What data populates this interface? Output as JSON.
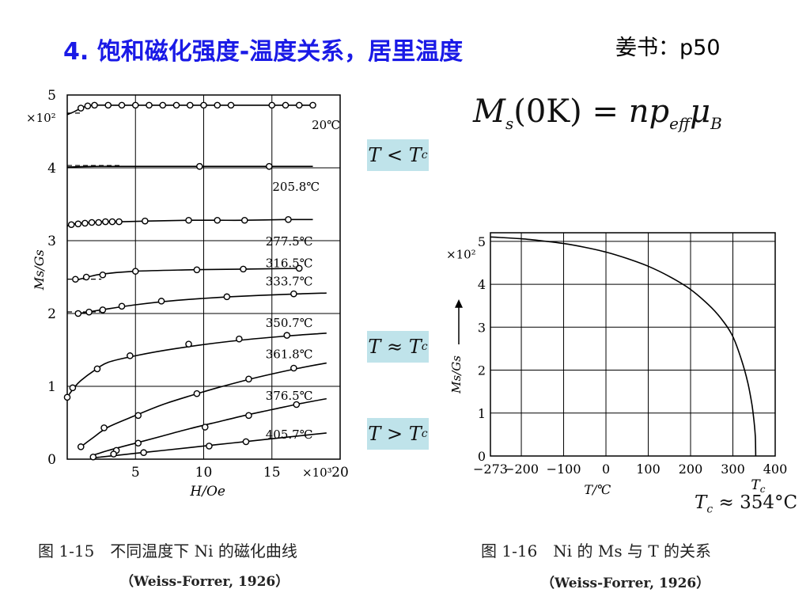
{
  "slide": {
    "title": "4. 饱和磁化强度-温度关系，居里温度",
    "reference": "姜书：p50",
    "formula": {
      "lhs_symbol": "M",
      "lhs_sub": "s",
      "lhs_arg": "(0K)",
      "rhs_n": "np",
      "rhs_sub": "eff",
      "rhs_mu": "μ",
      "rhs_mu_sub": "B"
    },
    "badges": [
      {
        "symbol": "T < T",
        "sub": "c"
      },
      {
        "symbol": "T ≈ T",
        "sub": "c"
      },
      {
        "symbol": "T > T",
        "sub": "c"
      }
    ],
    "tc_note": {
      "symbol": "T",
      "sub": "c",
      "value": "≈ 354°C"
    }
  },
  "chart_data": [
    {
      "type": "line",
      "title": "",
      "xlabel": "H/Oe",
      "ylabel": "Ms/Gs",
      "x_multiplier": "×10³",
      "y_multiplier": "×10²",
      "xlim": [
        0,
        20
      ],
      "ylim": [
        0,
        5
      ],
      "x_ticks": [
        5,
        10,
        15,
        20
      ],
      "y_ticks": [
        0,
        1,
        2,
        3,
        4,
        5
      ],
      "grid": true,
      "caption": "图 1-15　不同温度下 Ni 的磁化曲线",
      "source": "（Weiss-Forrer, 1926）",
      "series": [
        {
          "name": "20℃",
          "x": [
            0,
            0.5,
            1,
            1.5,
            2,
            3,
            4,
            5,
            6,
            7,
            8,
            9,
            10,
            11,
            12,
            14,
            15,
            16,
            17,
            18
          ],
          "values": [
            4.73,
            4.77,
            4.82,
            4.85,
            4.86,
            4.86,
            4.86,
            4.86,
            4.86,
            4.86,
            4.86,
            4.86,
            4.86,
            4.86,
            4.86,
            4.86,
            4.86,
            4.86,
            4.86,
            4.86
          ]
        },
        {
          "name": "205.8℃",
          "x": [
            0,
            2,
            4,
            8,
            12,
            16,
            18
          ],
          "values": [
            4.01,
            4.02,
            4.02,
            4.02,
            4.02,
            4.02,
            4.02
          ]
        },
        {
          "name": "277.5℃",
          "x": [
            0,
            0.2,
            0.5,
            1,
            1.5,
            2,
            2.5,
            3,
            3.5,
            4,
            6,
            9,
            11,
            13,
            16,
            18
          ],
          "values": [
            3.2,
            3.22,
            3.23,
            3.24,
            3.25,
            3.25,
            3.26,
            3.26,
            3.26,
            3.26,
            3.27,
            3.28,
            3.28,
            3.28,
            3.29,
            3.29
          ]
        },
        {
          "name": "316.5℃",
          "x": [
            0.5,
            1.5,
            2.5,
            5,
            9,
            13,
            17
          ],
          "values": [
            2.45,
            2.5,
            2.54,
            2.58,
            2.6,
            2.61,
            2.62
          ]
        },
        {
          "name": "333.7℃",
          "x": [
            0.8,
            1.5,
            2.5,
            5,
            8,
            12,
            17,
            19
          ],
          "values": [
            2.0,
            2.02,
            2.05,
            2.12,
            2.18,
            2.23,
            2.27,
            2.28
          ]
        },
        {
          "name": "350.7℃",
          "x": [
            0,
            0.5,
            1,
            2,
            3,
            5,
            8,
            12,
            16,
            19
          ],
          "values": [
            0.85,
            0.98,
            1.08,
            1.22,
            1.33,
            1.42,
            1.52,
            1.62,
            1.69,
            1.73
          ]
        },
        {
          "name": "361.8℃",
          "x": [
            1,
            2,
            3,
            5,
            7,
            9,
            11,
            13,
            15,
            17,
            19
          ],
          "values": [
            0.17,
            0.31,
            0.44,
            0.6,
            0.75,
            0.87,
            0.98,
            1.08,
            1.17,
            1.25,
            1.32
          ]
        },
        {
          "name": "376.5℃",
          "x": [
            2,
            3,
            5,
            7,
            9,
            11,
            13,
            15,
            17,
            19
          ],
          "values": [
            0.06,
            0.12,
            0.22,
            0.32,
            0.42,
            0.51,
            0.6,
            0.68,
            0.76,
            0.83
          ]
        },
        {
          "name": "405.7℃",
          "x": [
            2,
            3,
            5,
            7,
            9,
            11,
            13,
            15,
            17,
            19
          ],
          "values": [
            0.02,
            0.04,
            0.08,
            0.12,
            0.16,
            0.2,
            0.24,
            0.28,
            0.32,
            0.36
          ]
        }
      ],
      "markers": {
        "20℃": [
          [
            1,
            4.82
          ],
          [
            1.5,
            4.85
          ],
          [
            2,
            4.86
          ],
          [
            3,
            4.86
          ],
          [
            4,
            4.86
          ],
          [
            5,
            4.86
          ],
          [
            6,
            4.86
          ],
          [
            7,
            4.86
          ],
          [
            8,
            4.86
          ],
          [
            9,
            4.86
          ],
          [
            10,
            4.86
          ],
          [
            11,
            4.86
          ],
          [
            12,
            4.86
          ],
          [
            15,
            4.86
          ],
          [
            16,
            4.86
          ],
          [
            17,
            4.86
          ],
          [
            18,
            4.86
          ]
        ],
        "205.8℃": [
          [
            9.7,
            4.02
          ],
          [
            14.8,
            4.02
          ]
        ],
        "277.5℃": [
          [
            0.3,
            3.22
          ],
          [
            0.8,
            3.23
          ],
          [
            1.3,
            3.24
          ],
          [
            1.8,
            3.25
          ],
          [
            2.3,
            3.25
          ],
          [
            2.8,
            3.26
          ],
          [
            3.3,
            3.26
          ],
          [
            3.8,
            3.26
          ],
          [
            5.7,
            3.27
          ],
          [
            8.9,
            3.28
          ],
          [
            11,
            3.28
          ],
          [
            13,
            3.28
          ],
          [
            16.2,
            3.29
          ]
        ],
        "316.5℃": [
          [
            0.6,
            2.47
          ],
          [
            1.4,
            2.5
          ],
          [
            2.6,
            2.53
          ],
          [
            5,
            2.58
          ],
          [
            9.5,
            2.6
          ],
          [
            12.9,
            2.61
          ],
          [
            17,
            2.62
          ]
        ],
        "333.7℃": [
          [
            0.8,
            2.0
          ],
          [
            1.6,
            2.02
          ],
          [
            2.6,
            2.05
          ],
          [
            4,
            2.1
          ],
          [
            6.9,
            2.17
          ],
          [
            11.7,
            2.23
          ],
          [
            16.6,
            2.27
          ]
        ],
        "350.7℃": [
          [
            0,
            0.85
          ],
          [
            0.4,
            0.98
          ],
          [
            2.2,
            1.24
          ],
          [
            4.6,
            1.42
          ],
          [
            8.9,
            1.58
          ],
          [
            12.6,
            1.65
          ],
          [
            16.1,
            1.7
          ]
        ],
        "361.8℃": [
          [
            1.0,
            0.17
          ],
          [
            2.7,
            0.43
          ],
          [
            5.2,
            0.6
          ],
          [
            9.5,
            0.9
          ],
          [
            13.3,
            1.1
          ],
          [
            16.6,
            1.25
          ]
        ],
        "376.5℃": [
          [
            3.6,
            0.12
          ],
          [
            5.2,
            0.22
          ],
          [
            10.1,
            0.44
          ],
          [
            13.3,
            0.6
          ],
          [
            16.8,
            0.75
          ]
        ],
        "405.7℃": [
          [
            1.9,
            0.03
          ],
          [
            3.4,
            0.07
          ],
          [
            5.6,
            0.09
          ],
          [
            10.4,
            0.18
          ],
          [
            13.1,
            0.24
          ]
        ]
      },
      "dashed_extrapolation": [
        "20℃",
        "205.8℃",
        "316.5℃",
        "333.7℃"
      ]
    },
    {
      "type": "line",
      "title": "",
      "xlabel": "T/℃",
      "ylabel": "Ms/Gs",
      "y_multiplier": "×10²",
      "xlim": [
        -273,
        400
      ],
      "ylim": [
        0,
        5.2
      ],
      "x_ticks": [
        -273,
        -200,
        -100,
        0,
        100,
        200,
        300,
        400
      ],
      "x_tick_labels": [
        "−273",
        "−200",
        "−100",
        "0",
        "100",
        "200",
        "300",
        "400"
      ],
      "y_ticks": [
        0,
        1,
        2,
        3,
        4,
        5
      ],
      "tc_label": "T",
      "tc_label_sub": "c",
      "tc_value": 354,
      "grid": true,
      "caption": "图 1-16　Ni 的 Ms 与 T 的关系",
      "source": "（Weiss-Forrer, 1926）",
      "series": [
        {
          "name": "",
          "x": [
            -273,
            -250,
            -200,
            -150,
            -100,
            -50,
            0,
            50,
            100,
            150,
            200,
            250,
            280,
            300,
            320,
            335,
            345,
            350,
            353,
            354
          ],
          "values": [
            5.1,
            5.09,
            5.06,
            5.01,
            4.95,
            4.86,
            4.75,
            4.6,
            4.42,
            4.18,
            3.88,
            3.45,
            3.1,
            2.78,
            2.25,
            1.72,
            1.2,
            0.8,
            0.45,
            0.0
          ]
        }
      ]
    }
  ]
}
